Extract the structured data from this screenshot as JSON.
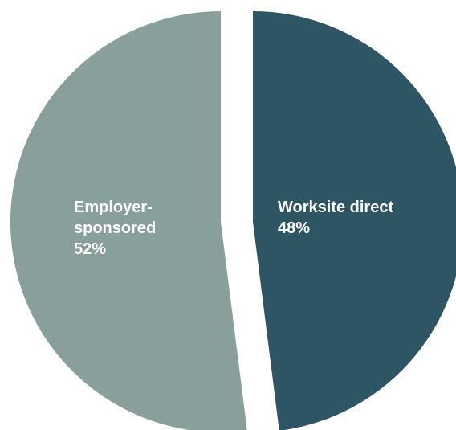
{
  "chart_data": {
    "type": "pie",
    "slices": [
      {
        "label_lines": [
          "Worksite direct"
        ],
        "value": 48,
        "value_label": "48%",
        "color": "#2e5563"
      },
      {
        "label_lines": [
          "Employer-",
          "sponsored"
        ],
        "value": 52,
        "value_label": "52%",
        "color": "#889f9b"
      }
    ],
    "title": "",
    "legend": "none",
    "start": "top",
    "direction": "clockwise",
    "exploded": true
  }
}
